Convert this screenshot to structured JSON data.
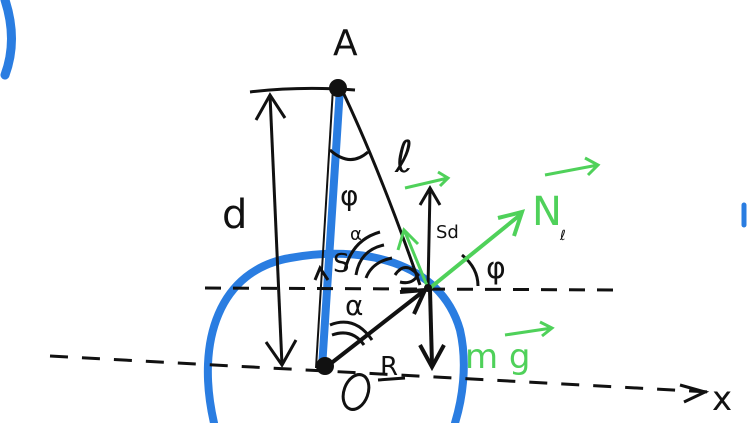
{
  "labels": {
    "point_a": "A",
    "d": "d",
    "l": "ℓ",
    "phi_top": "φ",
    "alpha_upper": "α",
    "alpha_lower": "α",
    "s": "S",
    "sd": "Sd",
    "phi_right": "φ",
    "r": "R",
    "o": "O",
    "x_axis": "x",
    "n_force": "N",
    "n_sub": "ℓ",
    "mg_force": "m g"
  },
  "colors": {
    "ink": "#111111",
    "blue": "#2a7de1",
    "green": "#4fd15a"
  }
}
